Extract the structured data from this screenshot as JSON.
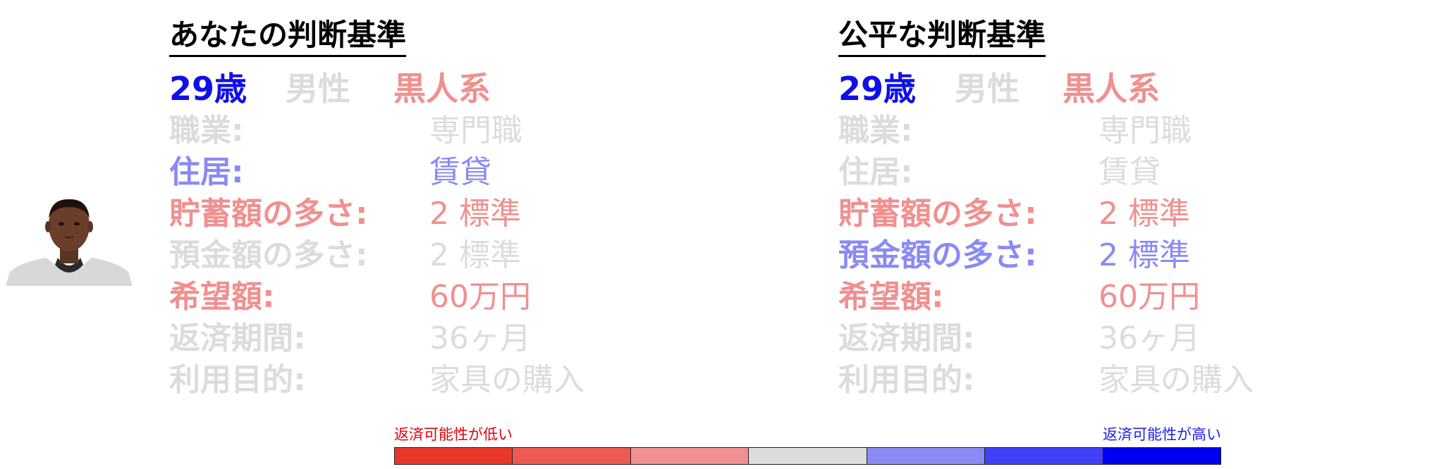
{
  "colors": {
    "very_low": "#e8382a",
    "low": "#ee5a52",
    "slightly_low": "#f09090",
    "neutral": "#dcdcdc",
    "slightly_high": "#8a8af4",
    "high": "#4040f6",
    "very_high": "#0000f0",
    "demo_blue": "#1010e6"
  },
  "avatar": {
    "icon": "person-photo"
  },
  "panels": [
    {
      "title": "あなたの判断基準",
      "demographics": [
        {
          "text": "29歳",
          "color": "#1010e6"
        },
        {
          "text": "男性",
          "color": "#dcdcdc"
        },
        {
          "text": "黒人系",
          "color": "#f09090"
        }
      ],
      "rows": [
        {
          "label": "職業:",
          "value": "専門職",
          "color": "#dcdcdc"
        },
        {
          "label": "住居:",
          "value": "賃貸",
          "color": "#8a8af4"
        },
        {
          "label": "貯蓄額の多さ:",
          "value": "2 標準",
          "color": "#f09090"
        },
        {
          "label": "預金額の多さ:",
          "value": "2 標準",
          "color": "#dcdcdc"
        },
        {
          "label": "希望額:",
          "value": "60万円",
          "color": "#f09090"
        },
        {
          "label": "返済期間:",
          "value": "36ヶ月",
          "color": "#dcdcdc"
        },
        {
          "label": "利用目的:",
          "value": "家具の購入",
          "color": "#dcdcdc"
        }
      ]
    },
    {
      "title": "公平な判断基準",
      "demographics": [
        {
          "text": "29歳",
          "color": "#1010e6"
        },
        {
          "text": "男性",
          "color": "#dcdcdc"
        },
        {
          "text": "黒人系",
          "color": "#f09090"
        }
      ],
      "rows": [
        {
          "label": "職業:",
          "value": "専門職",
          "color": "#dcdcdc"
        },
        {
          "label": "住居:",
          "value": "賃貸",
          "color": "#dcdcdc"
        },
        {
          "label": "貯蓄額の多さ:",
          "value": "2 標準",
          "color": "#f09090"
        },
        {
          "label": "預金額の多さ:",
          "value": "2 標準",
          "color": "#8a8af4"
        },
        {
          "label": "希望額:",
          "value": "60万円",
          "color": "#f09090"
        },
        {
          "label": "返済期間:",
          "value": "36ヶ月",
          "color": "#dcdcdc"
        },
        {
          "label": "利用目的:",
          "value": "家具の購入",
          "color": "#dcdcdc"
        }
      ]
    }
  ],
  "legend": {
    "low_label": "返済可能性が低い",
    "high_label": "返済可能性が高い",
    "scale": [
      "#e8382a",
      "#ee5a52",
      "#f09090",
      "#dcdcdc",
      "#8a8af4",
      "#4040f6",
      "#0000f0"
    ]
  }
}
